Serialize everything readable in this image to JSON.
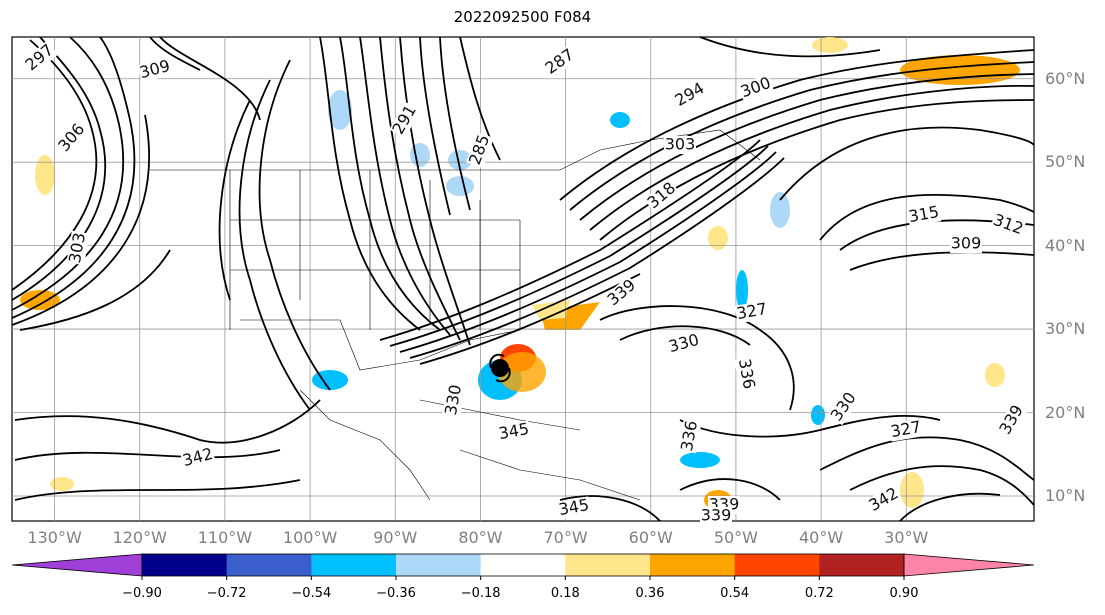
{
  "title": "2022092500 F084",
  "map": {
    "lon_range": [
      -135,
      -15
    ],
    "lat_range": [
      7,
      65
    ],
    "lat_labels": [
      {
        "lat": 60,
        "text": "60°N"
      },
      {
        "lat": 50,
        "text": "50°N"
      },
      {
        "lat": 40,
        "text": "40°N"
      },
      {
        "lat": 30,
        "text": "30°N"
      },
      {
        "lat": 20,
        "text": "20°N"
      },
      {
        "lat": 10,
        "text": "10°N"
      }
    ],
    "lon_labels": [
      {
        "lon": -130,
        "text": "130°W"
      },
      {
        "lon": -120,
        "text": "120°W"
      },
      {
        "lon": -110,
        "text": "110°W"
      },
      {
        "lon": -100,
        "text": "100°W"
      },
      {
        "lon": -90,
        "text": "90°W"
      },
      {
        "lon": -80,
        "text": "80°W"
      },
      {
        "lon": -70,
        "text": "70°W"
      },
      {
        "lon": -60,
        "text": "60°W"
      },
      {
        "lon": -50,
        "text": "50°W"
      },
      {
        "lon": -40,
        "text": "40°W"
      },
      {
        "lon": -30,
        "text": "30°W"
      }
    ],
    "contour_labels": [
      "297",
      "309",
      "303",
      "306",
      "291",
      "285",
      "287",
      "294",
      "300",
      "303",
      "318",
      "315",
      "312",
      "309",
      "327",
      "330",
      "336",
      "330",
      "327",
      "339",
      "345",
      "342",
      "345",
      "339",
      "339",
      "342",
      "339",
      "336",
      "330"
    ],
    "storm_center_marker": "hurricane-symbol"
  },
  "colorbar": {
    "levels": [
      "−0.90",
      "−0.72",
      "−0.54",
      "−0.36",
      "−0.18",
      "0.18",
      "0.36",
      "0.54",
      "0.72",
      "0.90"
    ],
    "colors": [
      "#8a2be2",
      "#00008b",
      "#3a5fcd",
      "#00bfff",
      "#add8f7",
      "#ffffff",
      "#ffe68a",
      "#ffa500",
      "#ff4500",
      "#b22222",
      "#ff85a8"
    ],
    "under_color": "#a040d8",
    "over_color": "#ff85a8"
  }
}
